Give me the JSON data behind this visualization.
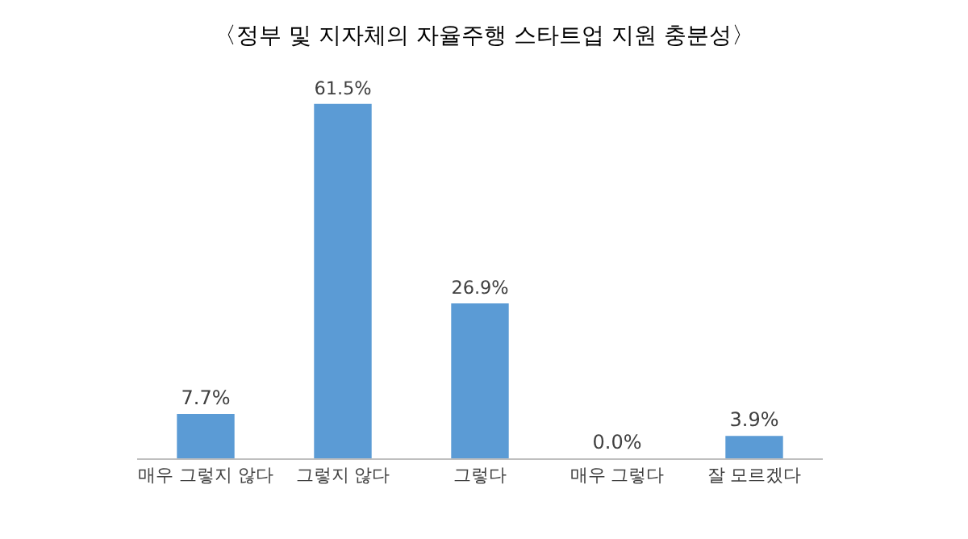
{
  "chart_data": {
    "type": "bar",
    "title": "〈정부 및 지자체의 자율주행 스타트업 지원 충분성〉",
    "categories": [
      "매우 그렇지 않다",
      "그렇지 않다",
      "그렇다",
      "매우 그렇다",
      "잘 모르겠다"
    ],
    "values": [
      7.7,
      61.5,
      26.9,
      0.0,
      3.9
    ],
    "value_labels": [
      "7.7%",
      "61.5%",
      "26.9%",
      "0.0%",
      "3.9%"
    ],
    "color": "#5b9bd5"
  }
}
